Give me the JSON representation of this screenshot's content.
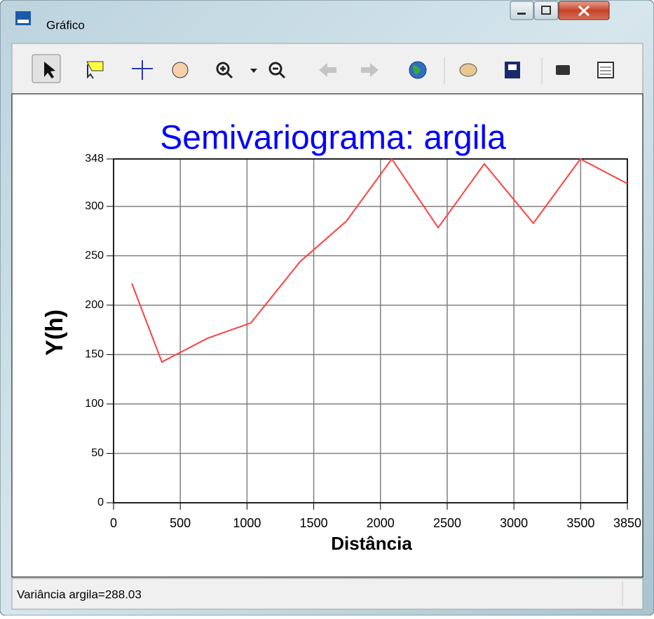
{
  "window": {
    "title": "Gráfico"
  },
  "status": "Variância argila=288.03",
  "chart_data": {
    "type": "line",
    "title": "Semivariograma: argila",
    "xlabel": "Distância",
    "ylabel": "Y(h)",
    "x": [
      137,
      362,
      704,
      1029,
      1397,
      1744,
      2085,
      2432,
      2778,
      3146,
      3498,
      3850
    ],
    "values": [
      222,
      142.5,
      166.5,
      182,
      244,
      285,
      348,
      278.5,
      343,
      283,
      348,
      323
    ],
    "color": "#ff4040",
    "xlim": [
      0,
      3850
    ],
    "ylim": [
      0,
      348
    ],
    "xticks": [
      0,
      500,
      1000,
      1500,
      2000,
      2500,
      3000,
      3500,
      3850
    ],
    "yticks": [
      0,
      50,
      100,
      150,
      200,
      250,
      300,
      348
    ],
    "grid": true
  }
}
